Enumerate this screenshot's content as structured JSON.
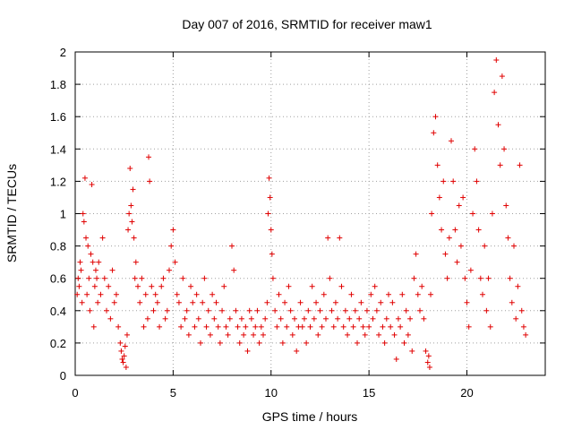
{
  "chart_data": {
    "type": "scatter",
    "title": "Day 007 of 2016, SRMTID for receiver maw1",
    "xlabel": "GPS time / hours",
    "ylabel": "SRMTID / TECUs",
    "xlim": [
      0,
      24
    ],
    "ylim": [
      0,
      2
    ],
    "xticks": [
      0,
      5,
      10,
      15,
      20
    ],
    "xtick_labels": [
      "0",
      "5",
      "10",
      "15",
      "20"
    ],
    "yticks": [
      0,
      0.2,
      0.4,
      0.6,
      0.8,
      1,
      1.2,
      1.4,
      1.6,
      1.8,
      2
    ],
    "ytick_labels": [
      "0",
      "0.2",
      "0.4",
      "0.6",
      "0.8",
      "1",
      "1.2",
      "1.4",
      "1.6",
      "1.8",
      "2"
    ],
    "grid": true,
    "marker": "+",
    "series": [
      {
        "name": "SRMTID",
        "color": "#e00000",
        "points": [
          [
            0.1,
            0.5
          ],
          [
            0.15,
            0.6
          ],
          [
            0.2,
            0.55
          ],
          [
            0.25,
            0.7
          ],
          [
            0.3,
            0.65
          ],
          [
            0.35,
            0.45
          ],
          [
            0.4,
            1.0
          ],
          [
            0.45,
            0.95
          ],
          [
            0.5,
            1.22
          ],
          [
            0.55,
            0.85
          ],
          [
            0.6,
            0.5
          ],
          [
            0.65,
            0.8
          ],
          [
            0.7,
            0.6
          ],
          [
            0.75,
            0.4
          ],
          [
            0.8,
            0.75
          ],
          [
            0.85,
            1.18
          ],
          [
            0.9,
            0.7
          ],
          [
            0.95,
            0.3
          ],
          [
            1.0,
            0.55
          ],
          [
            1.05,
            0.65
          ],
          [
            1.1,
            0.6
          ],
          [
            1.15,
            0.45
          ],
          [
            1.2,
            0.7
          ],
          [
            1.3,
            0.5
          ],
          [
            1.4,
            0.85
          ],
          [
            1.5,
            0.6
          ],
          [
            1.6,
            0.4
          ],
          [
            1.7,
            0.55
          ],
          [
            1.8,
            0.35
          ],
          [
            1.9,
            0.65
          ],
          [
            2.0,
            0.45
          ],
          [
            2.1,
            0.5
          ],
          [
            2.2,
            0.3
          ],
          [
            2.3,
            0.2
          ],
          [
            2.35,
            0.15
          ],
          [
            2.4,
            0.1
          ],
          [
            2.45,
            0.08
          ],
          [
            2.5,
            0.12
          ],
          [
            2.55,
            0.18
          ],
          [
            2.6,
            0.05
          ],
          [
            2.65,
            0.25
          ],
          [
            2.7,
            0.9
          ],
          [
            2.75,
            1.0
          ],
          [
            2.8,
            1.28
          ],
          [
            2.85,
            1.05
          ],
          [
            2.9,
            0.95
          ],
          [
            2.95,
            1.15
          ],
          [
            3.0,
            0.85
          ],
          [
            3.05,
            0.6
          ],
          [
            3.1,
            0.7
          ],
          [
            3.2,
            0.55
          ],
          [
            3.3,
            0.45
          ],
          [
            3.4,
            0.6
          ],
          [
            3.5,
            0.3
          ],
          [
            3.6,
            0.5
          ],
          [
            3.7,
            0.35
          ],
          [
            3.75,
            1.35
          ],
          [
            3.8,
            1.2
          ],
          [
            3.9,
            0.55
          ],
          [
            4.0,
            0.4
          ],
          [
            4.1,
            0.5
          ],
          [
            4.2,
            0.45
          ],
          [
            4.3,
            0.3
          ],
          [
            4.4,
            0.55
          ],
          [
            4.5,
            0.6
          ],
          [
            4.6,
            0.35
          ],
          [
            4.7,
            0.4
          ],
          [
            4.8,
            0.65
          ],
          [
            4.9,
            0.8
          ],
          [
            5.0,
            0.9
          ],
          [
            5.1,
            0.7
          ],
          [
            5.2,
            0.5
          ],
          [
            5.3,
            0.45
          ],
          [
            5.4,
            0.3
          ],
          [
            5.5,
            0.6
          ],
          [
            5.6,
            0.35
          ],
          [
            5.7,
            0.4
          ],
          [
            5.8,
            0.25
          ],
          [
            5.9,
            0.55
          ],
          [
            6.0,
            0.45
          ],
          [
            6.1,
            0.3
          ],
          [
            6.2,
            0.5
          ],
          [
            6.3,
            0.35
          ],
          [
            6.4,
            0.2
          ],
          [
            6.5,
            0.45
          ],
          [
            6.6,
            0.6
          ],
          [
            6.7,
            0.3
          ],
          [
            6.8,
            0.4
          ],
          [
            6.9,
            0.25
          ],
          [
            7.0,
            0.5
          ],
          [
            7.1,
            0.35
          ],
          [
            7.2,
            0.45
          ],
          [
            7.3,
            0.3
          ],
          [
            7.4,
            0.2
          ],
          [
            7.5,
            0.4
          ],
          [
            7.6,
            0.55
          ],
          [
            7.7,
            0.3
          ],
          [
            7.8,
            0.25
          ],
          [
            7.9,
            0.35
          ],
          [
            8.0,
            0.8
          ],
          [
            8.1,
            0.65
          ],
          [
            8.2,
            0.4
          ],
          [
            8.3,
            0.3
          ],
          [
            8.4,
            0.2
          ],
          [
            8.5,
            0.35
          ],
          [
            8.6,
            0.25
          ],
          [
            8.7,
            0.3
          ],
          [
            8.8,
            0.15
          ],
          [
            8.9,
            0.4
          ],
          [
            9.0,
            0.35
          ],
          [
            9.1,
            0.25
          ],
          [
            9.2,
            0.3
          ],
          [
            9.3,
            0.4
          ],
          [
            9.4,
            0.2
          ],
          [
            9.5,
            0.3
          ],
          [
            9.6,
            0.25
          ],
          [
            9.7,
            0.35
          ],
          [
            9.8,
            0.45
          ],
          [
            9.85,
            1.0
          ],
          [
            9.9,
            1.22
          ],
          [
            9.95,
            1.1
          ],
          [
            10.0,
            0.9
          ],
          [
            10.05,
            0.75
          ],
          [
            10.1,
            0.6
          ],
          [
            10.2,
            0.4
          ],
          [
            10.3,
            0.3
          ],
          [
            10.4,
            0.5
          ],
          [
            10.5,
            0.35
          ],
          [
            10.6,
            0.2
          ],
          [
            10.7,
            0.45
          ],
          [
            10.8,
            0.3
          ],
          [
            10.9,
            0.55
          ],
          [
            11.0,
            0.4
          ],
          [
            11.1,
            0.25
          ],
          [
            11.2,
            0.35
          ],
          [
            11.3,
            0.15
          ],
          [
            11.4,
            0.3
          ],
          [
            11.5,
            0.45
          ],
          [
            11.6,
            0.3
          ],
          [
            11.7,
            0.35
          ],
          [
            11.8,
            0.2
          ],
          [
            11.9,
            0.4
          ],
          [
            12.0,
            0.3
          ],
          [
            12.1,
            0.55
          ],
          [
            12.2,
            0.35
          ],
          [
            12.3,
            0.45
          ],
          [
            12.4,
            0.25
          ],
          [
            12.5,
            0.4
          ],
          [
            12.6,
            0.3
          ],
          [
            12.7,
            0.5
          ],
          [
            12.8,
            0.35
          ],
          [
            12.9,
            0.85
          ],
          [
            13.0,
            0.6
          ],
          [
            13.1,
            0.4
          ],
          [
            13.2,
            0.3
          ],
          [
            13.3,
            0.45
          ],
          [
            13.4,
            0.35
          ],
          [
            13.5,
            0.85
          ],
          [
            13.6,
            0.55
          ],
          [
            13.7,
            0.3
          ],
          [
            13.8,
            0.4
          ],
          [
            13.9,
            0.25
          ],
          [
            14.0,
            0.35
          ],
          [
            14.1,
            0.5
          ],
          [
            14.2,
            0.3
          ],
          [
            14.3,
            0.4
          ],
          [
            14.4,
            0.2
          ],
          [
            14.5,
            0.35
          ],
          [
            14.6,
            0.45
          ],
          [
            14.7,
            0.3
          ],
          [
            14.8,
            0.25
          ],
          [
            14.9,
            0.4
          ],
          [
            15.0,
            0.3
          ],
          [
            15.1,
            0.5
          ],
          [
            15.2,
            0.35
          ],
          [
            15.3,
            0.55
          ],
          [
            15.4,
            0.4
          ],
          [
            15.5,
            0.25
          ],
          [
            15.6,
            0.45
          ],
          [
            15.7,
            0.3
          ],
          [
            15.8,
            0.2
          ],
          [
            15.9,
            0.35
          ],
          [
            16.0,
            0.5
          ],
          [
            16.1,
            0.3
          ],
          [
            16.2,
            0.45
          ],
          [
            16.3,
            0.25
          ],
          [
            16.4,
            0.1
          ],
          [
            16.5,
            0.35
          ],
          [
            16.6,
            0.3
          ],
          [
            16.7,
            0.5
          ],
          [
            16.8,
            0.2
          ],
          [
            16.9,
            0.4
          ],
          [
            17.0,
            0.25
          ],
          [
            17.1,
            0.35
          ],
          [
            17.2,
            0.15
          ],
          [
            17.3,
            0.6
          ],
          [
            17.4,
            0.75
          ],
          [
            17.5,
            0.5
          ],
          [
            17.6,
            0.4
          ],
          [
            17.7,
            0.55
          ],
          [
            17.8,
            0.35
          ],
          [
            17.9,
            0.15
          ],
          [
            18.0,
            0.08
          ],
          [
            18.05,
            0.12
          ],
          [
            18.1,
            0.05
          ],
          [
            18.15,
            0.5
          ],
          [
            18.2,
            1.0
          ],
          [
            18.3,
            1.5
          ],
          [
            18.4,
            1.6
          ],
          [
            18.5,
            1.3
          ],
          [
            18.6,
            1.1
          ],
          [
            18.7,
            0.9
          ],
          [
            18.8,
            1.2
          ],
          [
            18.9,
            0.75
          ],
          [
            19.0,
            0.6
          ],
          [
            19.1,
            0.85
          ],
          [
            19.2,
            1.45
          ],
          [
            19.3,
            1.2
          ],
          [
            19.4,
            0.9
          ],
          [
            19.5,
            0.7
          ],
          [
            19.6,
            1.05
          ],
          [
            19.7,
            0.8
          ],
          [
            19.8,
            1.1
          ],
          [
            19.9,
            0.6
          ],
          [
            20.0,
            0.45
          ],
          [
            20.1,
            0.3
          ],
          [
            20.2,
            0.65
          ],
          [
            20.3,
            1.0
          ],
          [
            20.4,
            1.4
          ],
          [
            20.5,
            1.2
          ],
          [
            20.6,
            0.9
          ],
          [
            20.7,
            0.6
          ],
          [
            20.8,
            0.5
          ],
          [
            20.9,
            0.8
          ],
          [
            21.0,
            0.4
          ],
          [
            21.1,
            0.6
          ],
          [
            21.2,
            0.3
          ],
          [
            21.3,
            1.0
          ],
          [
            21.4,
            1.75
          ],
          [
            21.5,
            1.95
          ],
          [
            21.6,
            1.55
          ],
          [
            21.7,
            1.3
          ],
          [
            21.8,
            1.85
          ],
          [
            21.9,
            1.4
          ],
          [
            22.0,
            1.05
          ],
          [
            22.1,
            0.85
          ],
          [
            22.2,
            0.6
          ],
          [
            22.3,
            0.45
          ],
          [
            22.4,
            0.8
          ],
          [
            22.5,
            0.35
          ],
          [
            22.6,
            0.55
          ],
          [
            22.7,
            1.3
          ],
          [
            22.8,
            0.4
          ],
          [
            22.9,
            0.3
          ],
          [
            23.0,
            0.25
          ]
        ]
      }
    ]
  }
}
